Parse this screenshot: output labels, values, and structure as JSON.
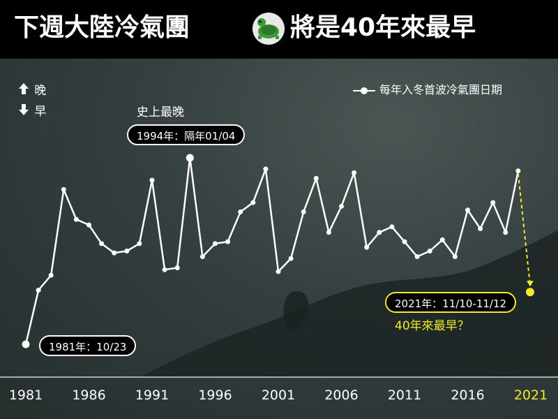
{
  "header": {
    "title_left": "下週大陸冷氣團",
    "title_right": "將是40年來最早",
    "logo_icon": "turtle-logo-icon"
  },
  "legend": {
    "later_label": "晚",
    "earlier_label": "早",
    "series_label": "每年入冬首波冷氣團日期"
  },
  "annotations": {
    "latest_heading": "史上最晚",
    "latest_pill": "1994年：隔年01/04",
    "first_pill": "1981年：10/23",
    "forecast_pill": "2021年：11/10-11/12",
    "forecast_note": "40年來最早？"
  },
  "colors": {
    "line": "#ffffff",
    "highlight": "#f2ea2a",
    "header_bg": "#000000"
  },
  "chart_data": {
    "type": "line",
    "title": "",
    "xlabel": "",
    "ylabel": "",
    "x_ticks": [
      "1981",
      "1986",
      "1991",
      "1996",
      "2001",
      "2006",
      "2011",
      "2016",
      "2021"
    ],
    "x": [
      1981,
      1982,
      1983,
      1984,
      1985,
      1986,
      1987,
      1988,
      1989,
      1990,
      1991,
      1992,
      1993,
      1994,
      1995,
      1996,
      1997,
      1998,
      1999,
      2000,
      2001,
      2002,
      2003,
      2004,
      2005,
      2006,
      2007,
      2008,
      2009,
      2010,
      2011,
      2012,
      2013,
      2014,
      2015,
      2016,
      2017,
      2018,
      2019,
      2020
    ],
    "y_relative_lateness": [
      0,
      29,
      37,
      83,
      67,
      64,
      54,
      49,
      50,
      54,
      88,
      40,
      41,
      100,
      47,
      54,
      55,
      71,
      76,
      94,
      39,
      46,
      71,
      89,
      60,
      74,
      92,
      52,
      60,
      63,
      55,
      47,
      50,
      56,
      47,
      72,
      62,
      76,
      60,
      93
    ],
    "forecast": {
      "year": 2021,
      "y_relative_lateness": 28
    },
    "ylim": [
      0,
      100
    ],
    "grid": false,
    "legend_position": "top-right"
  }
}
